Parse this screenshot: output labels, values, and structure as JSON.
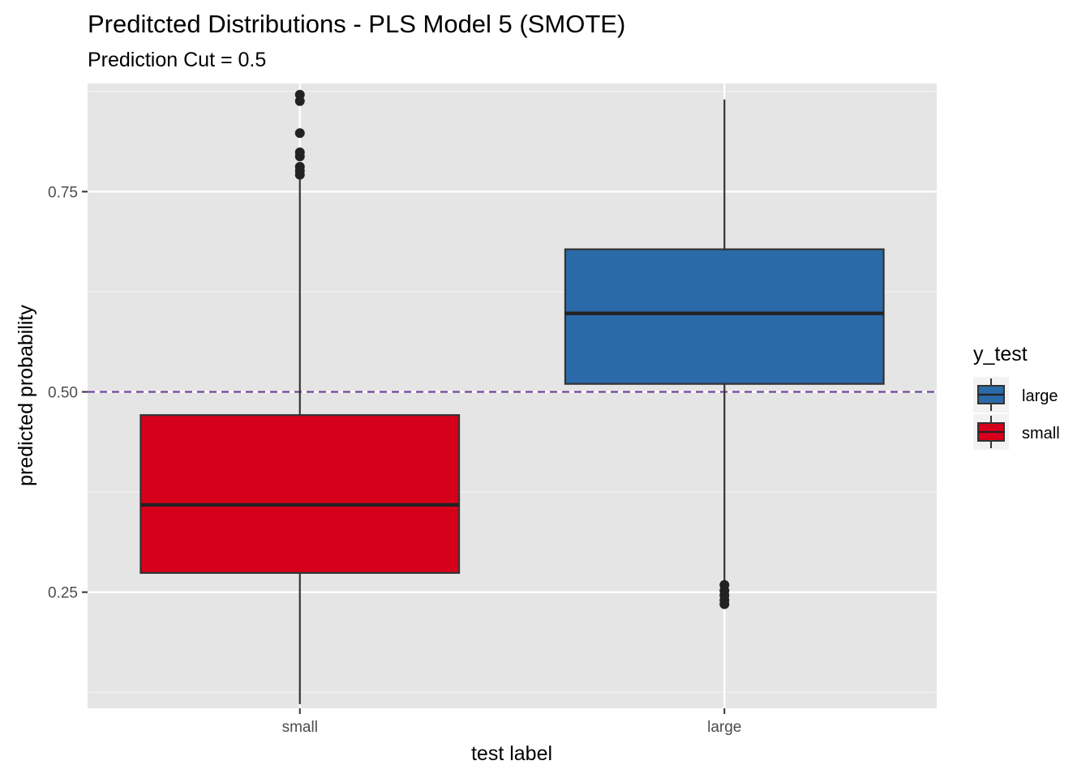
{
  "chart_data": {
    "type": "boxplot",
    "title": "Preditcted Distributions - PLS Model 5 (SMOTE)",
    "subtitle": "Prediction Cut = 0.5",
    "xlabel": "test label",
    "ylabel": "predicted probability",
    "categories": [
      "small",
      "large"
    ],
    "ylim": [
      0.105,
      0.885
    ],
    "yticks": [
      0.25,
      0.5,
      0.75
    ],
    "ytick_labels": [
      "0.25",
      "0.50",
      "0.75"
    ],
    "grid": true,
    "cutoff": {
      "value": 0.5,
      "color": "#6a3d9a",
      "style": "dashed"
    },
    "boxes": [
      {
        "category": "small",
        "group": "small",
        "whisker_low": 0.11,
        "q1": 0.274,
        "median": 0.359,
        "q3": 0.471,
        "whisker_high": 0.765,
        "outliers": [
          0.771,
          0.776,
          0.781,
          0.794,
          0.799,
          0.823,
          0.863,
          0.871
        ],
        "color": "#d7001b"
      },
      {
        "category": "large",
        "group": "large",
        "whisker_low": 0.264,
        "q1": 0.51,
        "median": 0.598,
        "q3": 0.678,
        "whisker_high": 0.865,
        "outliers": [
          0.235,
          0.24,
          0.246,
          0.252,
          0.259
        ],
        "color": "#2b6aa8"
      }
    ],
    "legend": {
      "title": "y_test",
      "position": "right",
      "items": [
        {
          "label": "large",
          "color": "#2b6aa8"
        },
        {
          "label": "small",
          "color": "#d7001b"
        }
      ]
    }
  }
}
